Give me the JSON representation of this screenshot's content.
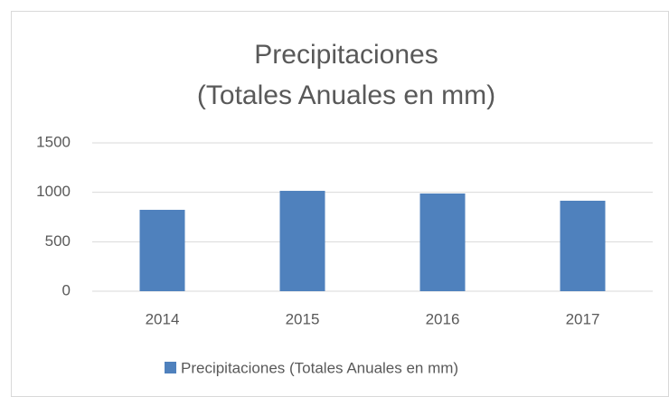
{
  "chart_data": {
    "type": "bar",
    "title": [
      "Precipitaciones",
      "(Totales Anuales en mm)"
    ],
    "categories": [
      "2014",
      "2015",
      "2016",
      "2017"
    ],
    "series": [
      {
        "name": "Precipitaciones (Totales Anuales en mm)",
        "color": "#4f81bd",
        "values": [
          823,
          1015,
          988,
          915
        ]
      }
    ],
    "ylim": [
      0,
      1500
    ],
    "yticks": [
      0,
      500,
      1000,
      1500
    ],
    "grid": true,
    "legend": "bottom"
  }
}
